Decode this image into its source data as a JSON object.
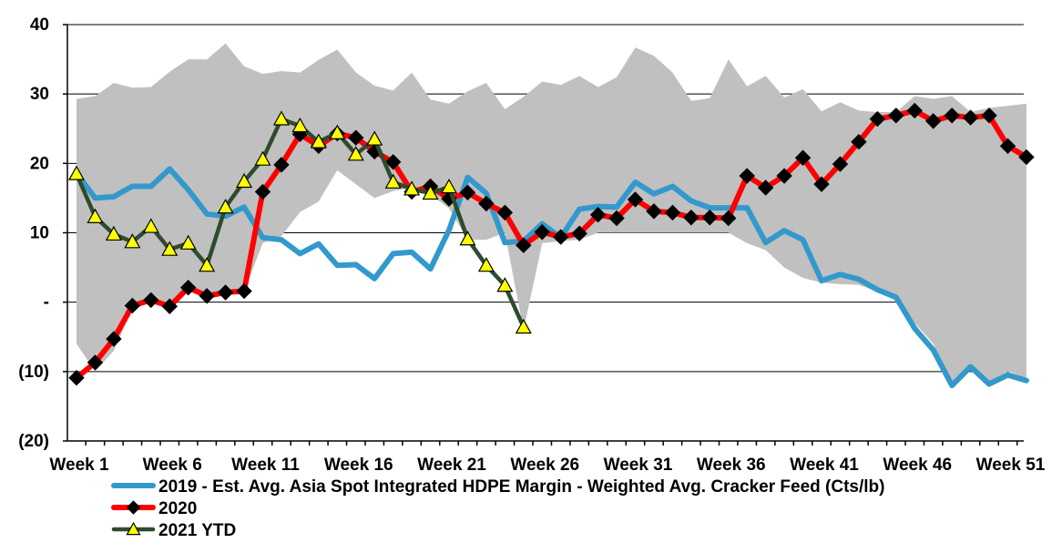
{
  "chart_data": {
    "type": "line",
    "title": "",
    "xlabel": "",
    "ylabel": "",
    "ylim": [
      -20,
      40
    ],
    "y_ticks": [
      {
        "value": 40,
        "label": "40"
      },
      {
        "value": 30,
        "label": "30"
      },
      {
        "value": 20,
        "label": "20"
      },
      {
        "value": 10,
        "label": "10"
      },
      {
        "value": 0,
        "label": "-"
      },
      {
        "value": -10,
        "label": "(10)"
      },
      {
        "value": -20,
        "label": "(20)"
      }
    ],
    "x_tick_labels": [
      {
        "week": 1,
        "label": "Week 1"
      },
      {
        "week": 6,
        "label": "Week 6"
      },
      {
        "week": 11,
        "label": "Week 11"
      },
      {
        "week": 16,
        "label": "Week 16"
      },
      {
        "week": 21,
        "label": "Week 21"
      },
      {
        "week": 26,
        "label": "Week 26"
      },
      {
        "week": 31,
        "label": "Week 31"
      },
      {
        "week": 36,
        "label": "Week 36"
      },
      {
        "week": 41,
        "label": "Week 41"
      },
      {
        "week": 46,
        "label": "Week 46"
      },
      {
        "week": 51,
        "label": "Week 51"
      }
    ],
    "weeks": 52,
    "band": {
      "name": "Historical range",
      "upper": [
        29.3,
        29.7,
        31.6,
        30.9,
        31.0,
        33.2,
        35.0,
        35.0,
        37.3,
        34.0,
        32.9,
        33.3,
        33.1,
        34.9,
        36.4,
        33.1,
        31.2,
        30.5,
        33.1,
        29.2,
        28.6,
        30.4,
        31.6,
        27.8,
        29.6,
        31.8,
        31.3,
        32.6,
        31.0,
        32.4,
        36.7,
        35.5,
        33.1,
        29.0,
        29.4,
        35.0,
        31.1,
        32.6,
        29.5,
        30.7,
        27.5,
        28.8,
        27.6,
        27.4,
        27.4,
        29.7,
        29.3,
        29.7,
        27.4,
        28.0,
        28.3,
        28.6
      ],
      "lower": [
        -6.0,
        -10.0,
        -7.0,
        -1.0,
        0.3,
        -0.5,
        1.5,
        1.5,
        1.2,
        1.5,
        8.5,
        9.5,
        13.0,
        14.5,
        19.0,
        17.0,
        15.0,
        16.0,
        16.5,
        15.5,
        13.5,
        9.0,
        9.0,
        10.0,
        -4.0,
        8.5,
        8.8,
        9.0,
        10.0,
        10.0,
        10.0,
        10.0,
        10.0,
        10.0,
        10.0,
        10.0,
        8.5,
        7.5,
        5.0,
        3.5,
        2.8,
        2.6,
        2.5,
        1.5,
        0.5,
        -3.0,
        -6.0,
        -12.0,
        -9.0,
        -11.5,
        -10.0,
        -11.0
      ],
      "color": "#c0c0c0"
    },
    "series": [
      {
        "name": "2019 - Est. Avg. Asia Spot Integrated HDPE Margin - Weighted Avg. Cracker Feed (Cts/lb)",
        "color": "#3399cc",
        "marker": "none",
        "values": [
          18.6,
          15.0,
          15.2,
          16.7,
          16.7,
          19.2,
          16.2,
          12.7,
          12.4,
          13.7,
          9.3,
          9.0,
          7.0,
          8.4,
          5.3,
          5.4,
          3.4,
          7.0,
          7.2,
          4.8,
          10.4,
          18.0,
          15.7,
          8.6,
          8.8,
          11.3,
          9.3,
          13.4,
          13.8,
          13.7,
          17.3,
          15.6,
          16.7,
          14.6,
          13.6,
          13.6,
          13.6,
          8.6,
          10.3,
          9.0,
          3.1,
          4.0,
          3.3,
          1.8,
          0.7,
          -3.8,
          -6.9,
          -12.0,
          -9.3,
          -11.8,
          -10.5,
          -11.3
        ]
      },
      {
        "name": "2020",
        "color": "#ff0000",
        "marker": "diamond",
        "values": [
          -10.9,
          -8.7,
          -5.3,
          -0.5,
          0.3,
          -0.6,
          2.1,
          0.9,
          1.4,
          1.6,
          15.9,
          19.8,
          24.2,
          22.5,
          24.3,
          23.7,
          21.7,
          20.2,
          15.9,
          16.7,
          14.9,
          15.8,
          14.2,
          12.9,
          8.2,
          10.1,
          9.4,
          9.9,
          12.6,
          12.1,
          14.8,
          13.1,
          12.9,
          12.2,
          12.2,
          12.1,
          18.2,
          16.5,
          18.2,
          20.8,
          17.0,
          19.9,
          23.1,
          26.4,
          26.9,
          27.6,
          26.1,
          26.9,
          26.6,
          26.9,
          22.5,
          20.9
        ]
      },
      {
        "name": "2021 YTD",
        "color": "#2d4b2d",
        "marker": "triangle",
        "values": [
          18.5,
          12.3,
          9.8,
          8.7,
          10.9,
          7.6,
          8.5,
          5.3,
          13.7,
          17.4,
          20.6,
          26.4,
          25.4,
          23.1,
          24.4,
          21.3,
          23.5,
          17.3,
          16.3,
          15.7,
          16.6,
          9.1,
          5.3,
          2.4,
          -3.6
        ]
      }
    ],
    "legend": [
      {
        "label": "2019 - Est. Avg. Asia Spot Integrated HDPE Margin - Weighted Avg. Cracker Feed (Cts/lb)"
      },
      {
        "label": "2020"
      },
      {
        "label": "2021 YTD"
      }
    ],
    "legend_position": "bottom",
    "grid": true
  }
}
